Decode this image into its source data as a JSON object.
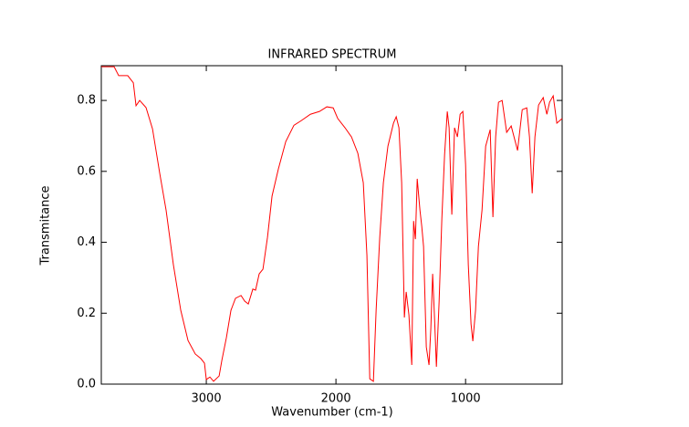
{
  "chart_data": {
    "type": "line",
    "title": "INFRARED SPECTRUM",
    "x_label": "Wavenumber (cm-1)",
    "y_label": "Transmitance",
    "color": "#ff0000",
    "x": [
      3810,
      3711,
      3676,
      3606,
      3563,
      3542,
      3514,
      3465,
      3415,
      3359,
      3310,
      3254,
      3197,
      3141,
      3085,
      3042,
      3014,
      3000,
      2972,
      2944,
      2901,
      2880,
      2845,
      2810,
      2775,
      2732,
      2704,
      2676,
      2641,
      2620,
      2592,
      2563,
      2528,
      2493,
      2444,
      2387,
      2324,
      2268,
      2197,
      2127,
      2070,
      2021,
      1986,
      1930,
      1880,
      1831,
      1789,
      1761,
      1739,
      1711,
      1690,
      1662,
      1634,
      1599,
      1556,
      1535,
      1514,
      1493,
      1472,
      1458,
      1437,
      1415,
      1401,
      1387,
      1373,
      1352,
      1338,
      1324,
      1303,
      1282,
      1268,
      1254,
      1239,
      1225,
      1204,
      1183,
      1162,
      1141,
      1127,
      1106,
      1085,
      1063,
      1042,
      1021,
      1000,
      979,
      958,
      944,
      923,
      901,
      873,
      845,
      810,
      789,
      768,
      746,
      718,
      683,
      648,
      599,
      563,
      528,
      507,
      486,
      465,
      437,
      401,
      373,
      352,
      324,
      296,
      255
    ],
    "values": [
      0.895,
      0.895,
      0.87,
      0.87,
      0.85,
      0.785,
      0.8,
      0.78,
      0.72,
      0.594,
      0.49,
      0.337,
      0.208,
      0.123,
      0.085,
      0.072,
      0.059,
      0.013,
      0.02,
      0.008,
      0.023,
      0.067,
      0.131,
      0.208,
      0.242,
      0.25,
      0.234,
      0.226,
      0.268,
      0.265,
      0.311,
      0.324,
      0.414,
      0.53,
      0.607,
      0.684,
      0.73,
      0.743,
      0.761,
      0.769,
      0.782,
      0.779,
      0.749,
      0.723,
      0.697,
      0.651,
      0.568,
      0.363,
      0.015,
      0.008,
      0.208,
      0.414,
      0.568,
      0.671,
      0.736,
      0.754,
      0.723,
      0.568,
      0.188,
      0.26,
      0.195,
      0.054,
      0.46,
      0.409,
      0.579,
      0.491,
      0.445,
      0.388,
      0.105,
      0.054,
      0.157,
      0.311,
      0.183,
      0.049,
      0.234,
      0.466,
      0.646,
      0.769,
      0.723,
      0.478,
      0.723,
      0.697,
      0.761,
      0.769,
      0.62,
      0.337,
      0.17,
      0.121,
      0.208,
      0.388,
      0.491,
      0.671,
      0.718,
      0.471,
      0.697,
      0.795,
      0.8,
      0.71,
      0.728,
      0.659,
      0.774,
      0.779,
      0.697,
      0.538,
      0.697,
      0.787,
      0.808,
      0.761,
      0.795,
      0.813,
      0.736,
      0.749
    ],
    "xlim": [
      3810,
      255
    ],
    "ylim": [
      0,
      0.898
    ],
    "xticks": [
      3000,
      2000,
      1000
    ],
    "yticks": [
      {
        "value": 0,
        "label": "0.0"
      },
      0.2,
      0.4,
      0.6,
      0.8
    ]
  }
}
